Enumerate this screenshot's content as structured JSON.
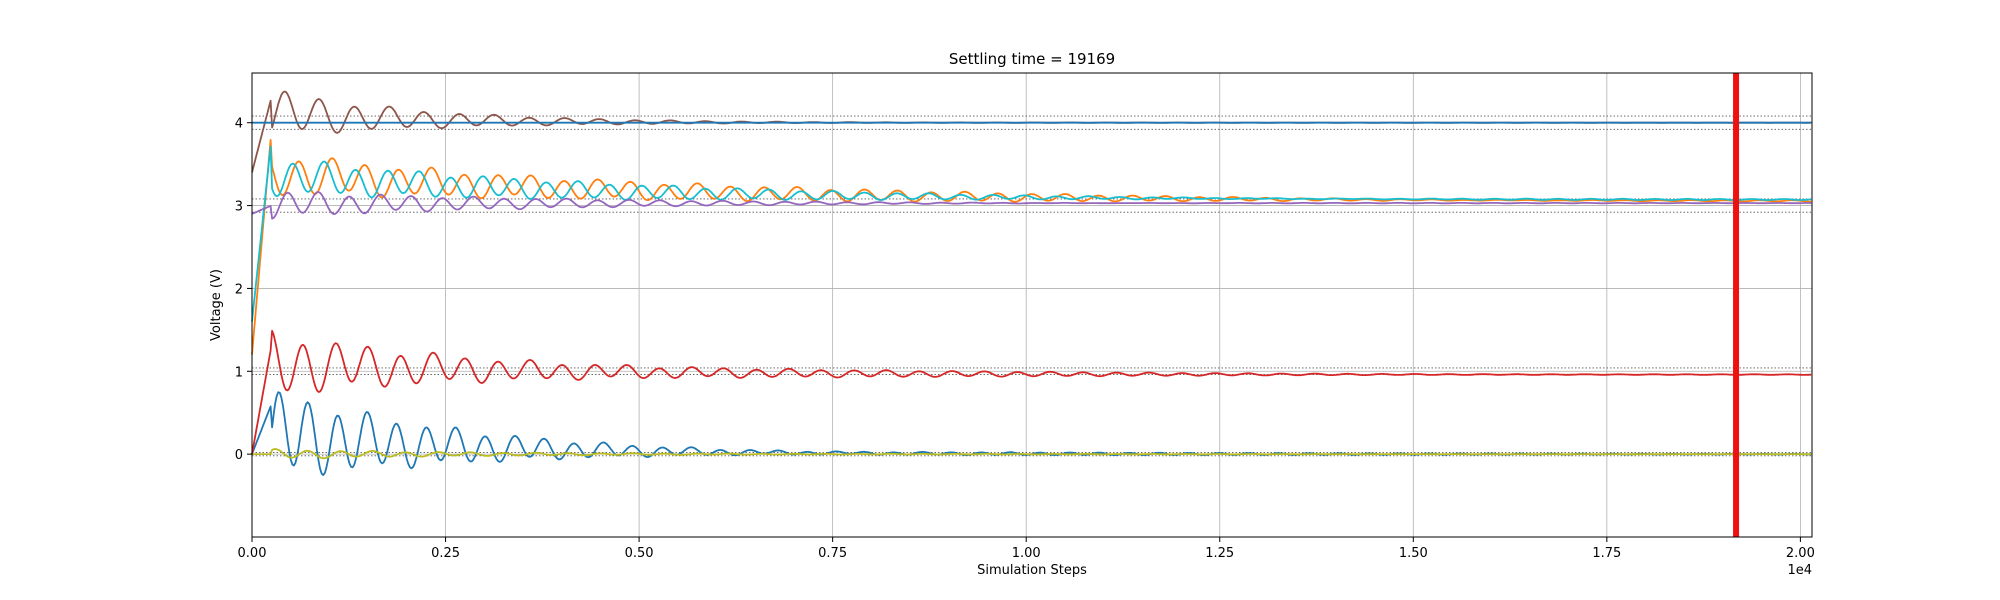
{
  "chart_data": {
    "type": "line",
    "title": "Settling time = 19169",
    "xlabel": "Simulation Steps",
    "ylabel": "Voltage (V)",
    "x_offset_label": "1e4",
    "xlim": [
      0,
      20150
    ],
    "ylim": [
      -1,
      4.6
    ],
    "grid": true,
    "x_ticks": [
      {
        "value": 0,
        "label": "0.00"
      },
      {
        "value": 2500,
        "label": "0.25"
      },
      {
        "value": 5000,
        "label": "0.50"
      },
      {
        "value": 7500,
        "label": "0.75"
      },
      {
        "value": 10000,
        "label": "1.00"
      },
      {
        "value": 12500,
        "label": "1.25"
      },
      {
        "value": 15000,
        "label": "1.50"
      },
      {
        "value": 17500,
        "label": "1.75"
      },
      {
        "value": 20000,
        "label": "2.00"
      }
    ],
    "y_ticks": [
      {
        "value": 0,
        "label": "0"
      },
      {
        "value": 1,
        "label": "1"
      },
      {
        "value": 2,
        "label": "2"
      },
      {
        "value": 3,
        "label": "3"
      },
      {
        "value": 4,
        "label": "4"
      }
    ],
    "settling_time": 19169,
    "tolerance_bands": [
      {
        "target": 4.0,
        "band": 0.08
      },
      {
        "target": 3.0,
        "band": 0.08
      },
      {
        "target": 1.0,
        "band": 0.04
      },
      {
        "target": 0.0,
        "band": 0.02
      }
    ],
    "series": [
      {
        "color": "#1f77b4",
        "start": 0.0,
        "initial": 0.6,
        "final": 0.0,
        "amplitude": 0.45,
        "period": 380,
        "decay": 2600
      },
      {
        "color": "#bcbd22",
        "start": 0.0,
        "initial": 0.0,
        "final": 0.0,
        "amplitude": 0.05,
        "period": 420,
        "decay": 3000
      },
      {
        "color": "#d62728",
        "start": 0.0,
        "initial": 1.3,
        "final": 0.96,
        "amplitude": 0.35,
        "period": 420,
        "decay": 3200
      },
      {
        "color": "#ff7f0e",
        "start": 1.2,
        "initial": 3.9,
        "final": 3.05,
        "amplitude": 0.25,
        "period": 430,
        "decay": 5000
      },
      {
        "color": "#17becf",
        "start": 1.6,
        "initial": 3.8,
        "final": 3.07,
        "amplitude": 0.22,
        "period": 410,
        "decay": 4200
      },
      {
        "color": "#9467bd",
        "start": 2.9,
        "initial": 3.0,
        "final": 3.03,
        "amplitude": 0.15,
        "period": 400,
        "decay": 3000
      },
      {
        "color": "#8c564b",
        "start": 3.4,
        "initial": 4.3,
        "final": 4.0,
        "amplitude": 0.25,
        "period": 450,
        "decay": 1800
      },
      {
        "color": "#1f77b4",
        "start": 4.0,
        "initial": 4.0,
        "final": 4.0,
        "amplitude": 0.0,
        "period": 400,
        "decay": 1000
      }
    ]
  }
}
